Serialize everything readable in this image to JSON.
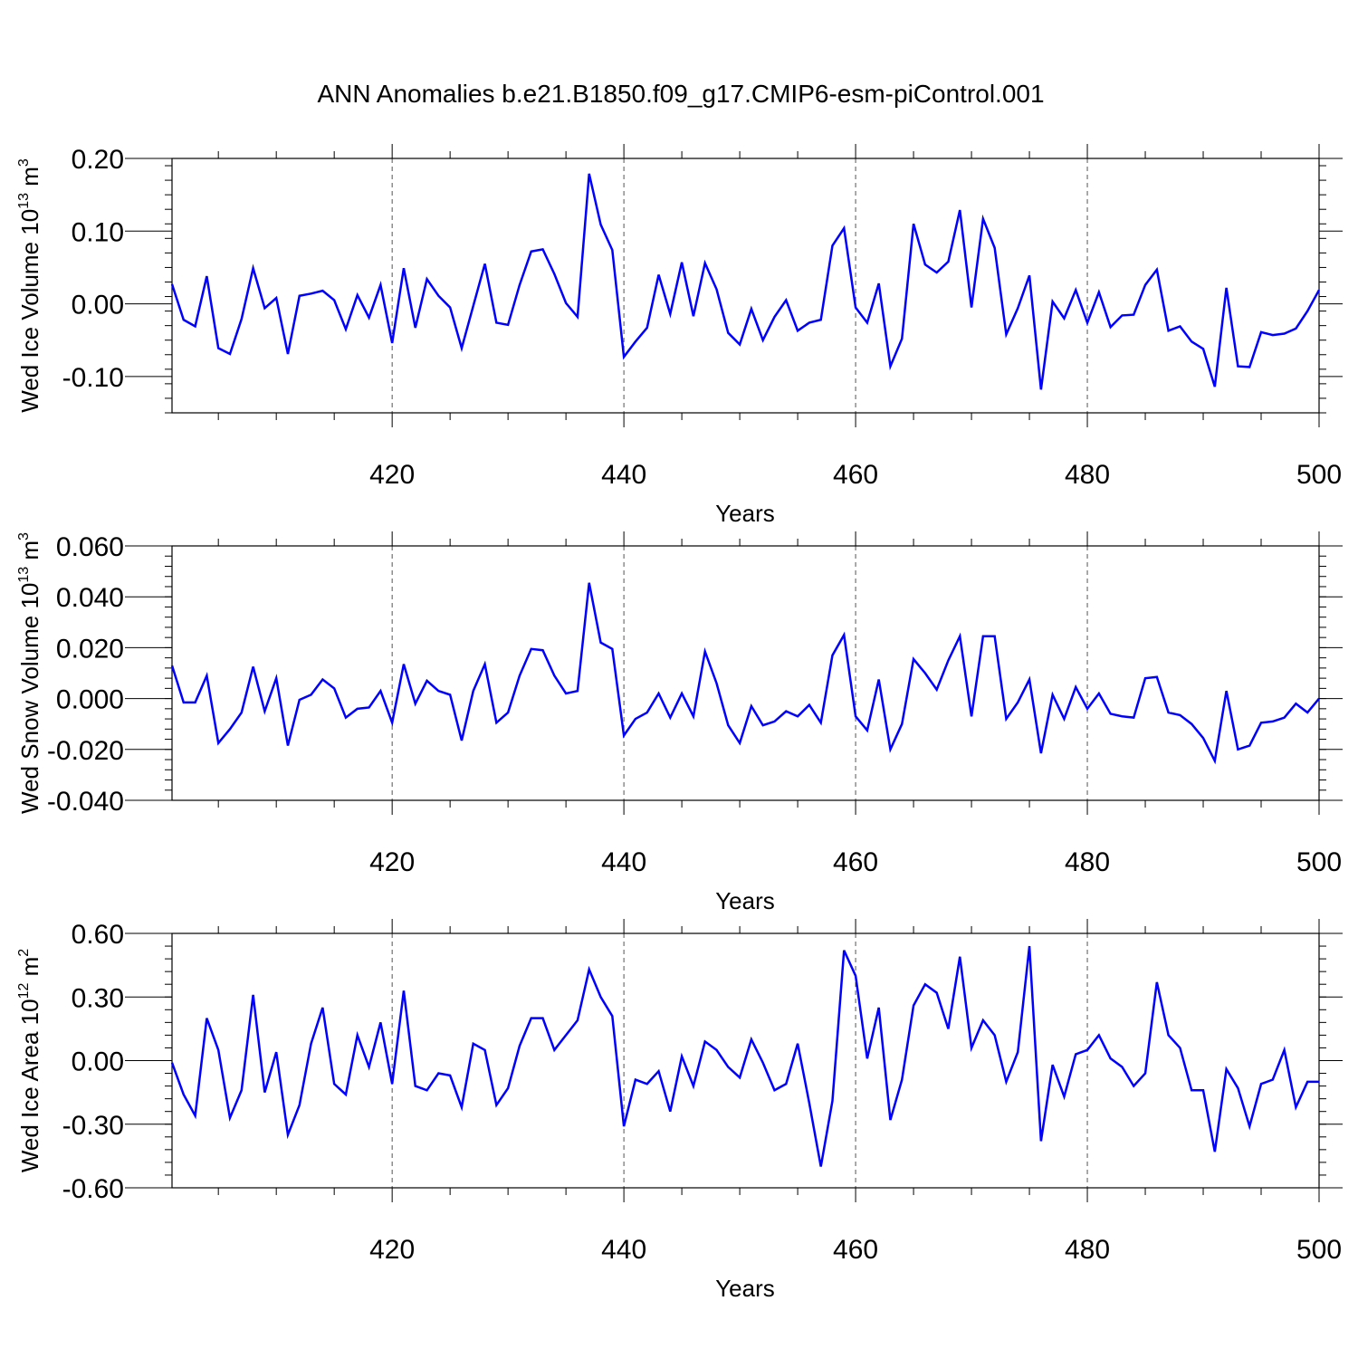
{
  "title": "ANN Anomalies b.e21.B1850.f09_g17.CMIP6-esm-piControl.001",
  "series_color": "#0000ff",
  "chart_data": [
    {
      "type": "line",
      "xlabel": "Years",
      "ylabel": {
        "prefix": "Wed Ice Volume 10",
        "exp": "13",
        "unit": " m",
        "unit_exp": "3"
      },
      "xlim": [
        401,
        500
      ],
      "ylim": [
        -0.15,
        0.2
      ],
      "x_ticks": [
        420,
        440,
        460,
        480,
        500
      ],
      "y_ticks": [
        -0.1,
        0.0,
        0.1,
        0.2
      ],
      "y_tick_labels": [
        "-0.10",
        "0.00",
        "0.10",
        "0.20"
      ],
      "x": [
        401,
        402,
        403,
        404,
        405,
        406,
        407,
        408,
        409,
        410,
        411,
        412,
        413,
        414,
        415,
        416,
        417,
        418,
        419,
        420,
        421,
        422,
        423,
        424,
        425,
        426,
        427,
        428,
        429,
        430,
        431,
        432,
        433,
        434,
        435,
        436,
        437,
        438,
        439,
        440,
        441,
        442,
        443,
        444,
        445,
        446,
        447,
        448,
        449,
        450,
        451,
        452,
        453,
        454,
        455,
        456,
        457,
        458,
        459,
        460,
        461,
        462,
        463,
        464,
        465,
        466,
        467,
        468,
        469,
        470,
        471,
        472,
        473,
        474,
        475,
        476,
        477,
        478,
        479,
        480,
        481,
        482,
        483,
        484,
        485,
        486,
        487,
        488,
        489,
        490,
        491,
        492,
        493,
        494,
        495,
        496,
        497,
        498,
        499,
        500
      ],
      "values": [
        0.027,
        -0.022,
        -0.031,
        0.038,
        -0.061,
        -0.069,
        -0.021,
        0.049,
        -0.006,
        0.008,
        -0.069,
        0.011,
        0.014,
        0.018,
        0.005,
        -0.035,
        0.012,
        -0.019,
        0.026,
        -0.054,
        0.049,
        -0.033,
        0.034,
        0.011,
        -0.005,
        -0.061,
        -0.003,
        0.055,
        -0.026,
        -0.029,
        0.026,
        0.072,
        0.075,
        0.041,
        0.001,
        -0.018,
        0.179,
        0.109,
        0.074,
        -0.073,
        -0.052,
        -0.033,
        0.04,
        -0.014,
        0.057,
        -0.017,
        0.056,
        0.02,
        -0.04,
        -0.056,
        -0.007,
        -0.05,
        -0.018,
        0.005,
        -0.037,
        -0.026,
        -0.022,
        0.08,
        0.104,
        -0.005,
        -0.026,
        0.028,
        -0.086,
        -0.048,
        0.11,
        0.054,
        0.043,
        0.058,
        0.129,
        -0.005,
        0.117,
        0.077,
        -0.042,
        -0.006,
        0.039,
        -0.118,
        0.003,
        -0.02,
        0.019,
        -0.026,
        0.016,
        -0.032,
        -0.016,
        -0.015,
        0.026,
        0.047,
        -0.037,
        -0.031,
        -0.052,
        -0.062,
        -0.114,
        0.022,
        -0.086,
        -0.087,
        -0.039,
        -0.043,
        -0.041,
        -0.034,
        -0.01,
        0.019
      ]
    },
    {
      "type": "line",
      "xlabel": "Years",
      "ylabel": {
        "prefix": "Wed Snow Volume 10",
        "exp": "13",
        "unit": " m",
        "unit_exp": "3"
      },
      "xlim": [
        401,
        500
      ],
      "ylim": [
        -0.04,
        0.06
      ],
      "x_ticks": [
        420,
        440,
        460,
        480,
        500
      ],
      "y_ticks": [
        -0.04,
        -0.02,
        0.0,
        0.02,
        0.04,
        0.06
      ],
      "y_tick_labels": [
        "-0.040",
        "-0.020",
        "0.000",
        "0.020",
        "0.040",
        "0.060"
      ],
      "x": [
        401,
        402,
        403,
        404,
        405,
        406,
        407,
        408,
        409,
        410,
        411,
        412,
        413,
        414,
        415,
        416,
        417,
        418,
        419,
        420,
        421,
        422,
        423,
        424,
        425,
        426,
        427,
        428,
        429,
        430,
        431,
        432,
        433,
        434,
        435,
        436,
        437,
        438,
        439,
        440,
        441,
        442,
        443,
        444,
        445,
        446,
        447,
        448,
        449,
        450,
        451,
        452,
        453,
        454,
        455,
        456,
        457,
        458,
        459,
        460,
        461,
        462,
        463,
        464,
        465,
        466,
        467,
        468,
        469,
        470,
        471,
        472,
        473,
        474,
        475,
        476,
        477,
        478,
        479,
        480,
        481,
        482,
        483,
        484,
        485,
        486,
        487,
        488,
        489,
        490,
        491,
        492,
        493,
        494,
        495,
        496,
        497,
        498,
        499,
        500
      ],
      "values": [
        0.013,
        -0.0015,
        -0.0015,
        0.009,
        -0.0175,
        -0.012,
        -0.0055,
        0.0125,
        -0.005,
        0.008,
        -0.0185,
        -0.0005,
        0.0015,
        0.0075,
        0.004,
        -0.0075,
        -0.004,
        -0.0035,
        0.003,
        -0.0095,
        0.0135,
        -0.002,
        0.007,
        0.003,
        0.0015,
        -0.0165,
        0.003,
        0.0135,
        -0.0095,
        -0.0055,
        0.009,
        0.0195,
        0.019,
        0.009,
        0.002,
        0.003,
        0.0455,
        0.022,
        0.0195,
        -0.0145,
        -0.008,
        -0.0055,
        0.002,
        -0.0075,
        0.002,
        -0.007,
        0.0185,
        0.006,
        -0.0105,
        -0.0175,
        -0.003,
        -0.0105,
        -0.009,
        -0.005,
        -0.007,
        -0.0025,
        -0.0095,
        0.017,
        0.025,
        -0.007,
        -0.0125,
        0.0075,
        -0.02,
        -0.01,
        0.0155,
        0.01,
        0.0035,
        0.015,
        0.0245,
        -0.007,
        0.0245,
        0.0245,
        -0.008,
        -0.0015,
        0.0075,
        -0.0215,
        0.0015,
        -0.008,
        0.0045,
        -0.004,
        0.002,
        -0.006,
        -0.007,
        -0.0075,
        0.008,
        0.0085,
        -0.0055,
        -0.0065,
        -0.01,
        -0.0155,
        -0.0245,
        0.003,
        -0.02,
        -0.0185,
        -0.0095,
        -0.009,
        -0.0075,
        -0.002,
        -0.0055,
        0.0
      ]
    },
    {
      "type": "line",
      "xlabel": "Years",
      "ylabel": {
        "prefix": "Wed Ice Area 10",
        "exp": "12",
        "unit": " m",
        "unit_exp": "2"
      },
      "xlim": [
        401,
        500
      ],
      "ylim": [
        -0.6,
        0.6
      ],
      "x_ticks": [
        420,
        440,
        460,
        480,
        500
      ],
      "y_ticks": [
        -0.6,
        -0.3,
        0.0,
        0.3,
        0.6
      ],
      "y_tick_labels": [
        "-0.60",
        "-0.30",
        "0.00",
        "0.30",
        "0.60"
      ],
      "x": [
        401,
        402,
        403,
        404,
        405,
        406,
        407,
        408,
        409,
        410,
        411,
        412,
        413,
        414,
        415,
        416,
        417,
        418,
        419,
        420,
        421,
        422,
        423,
        424,
        425,
        426,
        427,
        428,
        429,
        430,
        431,
        432,
        433,
        434,
        435,
        436,
        437,
        438,
        439,
        440,
        441,
        442,
        443,
        444,
        445,
        446,
        447,
        448,
        449,
        450,
        451,
        452,
        453,
        454,
        455,
        456,
        457,
        458,
        459,
        460,
        461,
        462,
        463,
        464,
        465,
        466,
        467,
        468,
        469,
        470,
        471,
        472,
        473,
        474,
        475,
        476,
        477,
        478,
        479,
        480,
        481,
        482,
        483,
        484,
        485,
        486,
        487,
        488,
        489,
        490,
        491,
        492,
        493,
        494,
        495,
        496,
        497,
        498,
        499,
        500
      ],
      "values": [
        -0.01,
        -0.16,
        -0.26,
        0.2,
        0.05,
        -0.27,
        -0.14,
        0.31,
        -0.15,
        0.04,
        -0.35,
        -0.21,
        0.08,
        0.25,
        -0.11,
        -0.16,
        0.12,
        -0.03,
        0.18,
        -0.11,
        0.33,
        -0.12,
        -0.14,
        -0.06,
        -0.07,
        -0.22,
        0.08,
        0.05,
        -0.21,
        -0.13,
        0.07,
        0.2,
        0.2,
        0.05,
        0.12,
        0.19,
        0.43,
        0.3,
        0.21,
        -0.31,
        -0.09,
        -0.11,
        -0.05,
        -0.24,
        0.02,
        -0.12,
        0.09,
        0.05,
        -0.03,
        -0.08,
        0.1,
        -0.01,
        -0.14,
        -0.11,
        0.08,
        -0.2,
        -0.5,
        -0.19,
        0.52,
        0.4,
        0.01,
        0.25,
        -0.28,
        -0.09,
        0.26,
        0.36,
        0.32,
        0.15,
        0.49,
        0.06,
        0.19,
        0.12,
        -0.1,
        0.04,
        0.54,
        -0.38,
        -0.02,
        -0.17,
        0.03,
        0.05,
        0.12,
        0.01,
        -0.03,
        -0.12,
        -0.06,
        0.37,
        0.12,
        0.06,
        -0.14,
        -0.14,
        -0.43,
        -0.04,
        -0.13,
        -0.31,
        -0.11,
        -0.09,
        0.05,
        -0.22,
        -0.1,
        -0.1
      ]
    }
  ]
}
